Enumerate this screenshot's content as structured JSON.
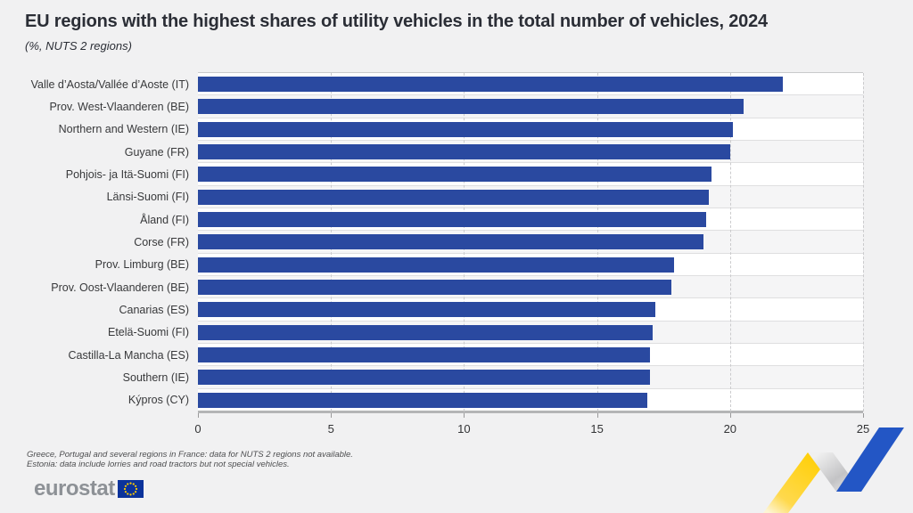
{
  "header": {
    "title": "EU regions with the highest shares of utility vehicles in the total number of vehicles, 2024",
    "subtitle": "(%, NUTS 2 regions)"
  },
  "chart_data": {
    "type": "bar",
    "orientation": "horizontal",
    "categories": [
      "Valle d’Aosta/Vallée d’Aoste (IT)",
      "Prov. West-Vlaanderen (BE)",
      "Northern and Western (IE)",
      "Guyane (FR)",
      "Pohjois- ja Itä-Suomi (FI)",
      "Länsi-Suomi (FI)",
      "Åland (FI)",
      "Corse (FR)",
      "Prov. Limburg (BE)",
      "Prov. Oost-Vlaanderen (BE)",
      "Canarias (ES)",
      "Etelä-Suomi (FI)",
      "Castilla-La Mancha (ES)",
      "Southern (IE)",
      "Kýpros (CY)"
    ],
    "values": [
      22.0,
      20.5,
      20.1,
      20.0,
      19.3,
      19.2,
      19.1,
      19.0,
      17.9,
      17.8,
      17.2,
      17.1,
      17.0,
      17.0,
      16.9
    ],
    "title": "EU regions with the highest shares of utility vehicles in the total number of vehicles, 2024",
    "xlabel": "",
    "ylabel": "",
    "xlim": [
      0,
      25
    ],
    "xticks": [
      0,
      5,
      10,
      15,
      20,
      25
    ],
    "grid": true,
    "legend": false,
    "bar_color": "#2a49a0"
  },
  "footnotes": [
    "Greece, Portugal and several regions in France: data for NUTS 2 regions not available.",
    "Estonia: data include lorries and road tractors but not special vehicles."
  ],
  "logo": {
    "text": "eurostat"
  },
  "colors": {
    "bar_blue": "#2a49a0",
    "page_background": "#f1f1f2",
    "flag_blue": "#0b339b",
    "star_yellow": "#ffcc00",
    "ribbon_yellow": "#ffce00",
    "ribbon_blue": "#2356c5"
  }
}
